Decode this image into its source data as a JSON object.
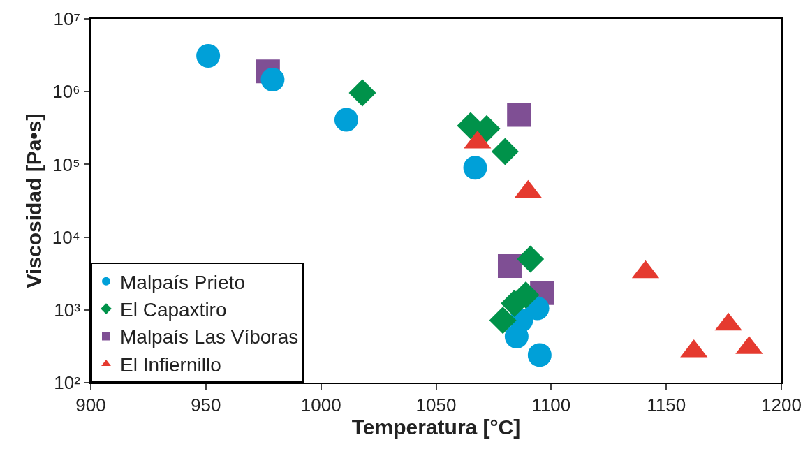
{
  "chart_data": {
    "type": "scatter",
    "xlabel": "Temperatura [°C]",
    "ylabel": "Viscosidad [Pa•s]",
    "log": "y",
    "xlim": [
      900,
      1200
    ],
    "xticks": [
      900,
      950,
      1000,
      1050,
      1100,
      1150,
      1200
    ],
    "ylim": [
      100,
      10000000
    ],
    "yticks": [
      {
        "value": 100,
        "label": "10²"
      },
      {
        "value": 1000,
        "label": "10³"
      },
      {
        "value": 10000,
        "label": "10⁴"
      },
      {
        "value": 100000,
        "label": "10⁵"
      },
      {
        "value": 1000000,
        "label": "10⁶"
      },
      {
        "value": 10000000,
        "label": "10⁷"
      }
    ],
    "grid": false,
    "legend": "bottom left",
    "series": [
      {
        "name": "Malpaís Prieto",
        "color": "#00a0d8",
        "marker": "circle",
        "x": [
          951,
          979,
          1011,
          1067,
          1094,
          1087,
          1085,
          1095
        ],
        "values": [
          3100000,
          1460000,
          410000,
          90000,
          1050,
          720,
          430,
          240
        ]
      },
      {
        "name": "El Capaxtiro",
        "color": "#00924a",
        "marker": "diamond",
        "x": [
          1018,
          1065,
          1072,
          1080,
          1091,
          1089,
          1084,
          1079
        ],
        "values": [
          960000,
          340000,
          310000,
          150000,
          5000,
          1600,
          1230,
          720
        ]
      },
      {
        "name": "Malpaís Las Víboras",
        "color": "#7f4f94",
        "marker": "square",
        "x": [
          977,
          1086,
          1082,
          1096
        ],
        "values": [
          1900000,
          480000,
          4000,
          1700
        ]
      },
      {
        "name": "El Infiernillo",
        "color": "#e53a2f",
        "marker": "triangle",
        "x": [
          1068,
          1090,
          1141,
          1177,
          1162,
          1186
        ],
        "values": [
          200000,
          42000,
          3300,
          630,
          270,
          300
        ]
      }
    ]
  }
}
